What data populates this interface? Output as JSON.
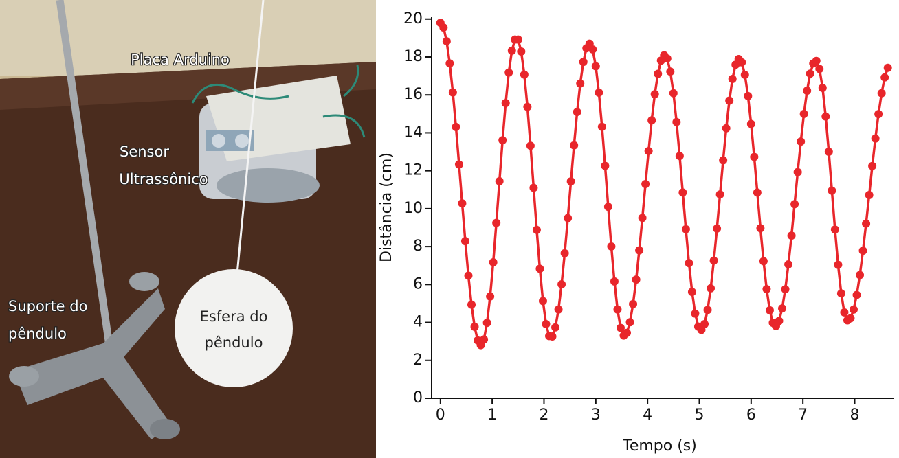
{
  "photo": {
    "labels": [
      "Placa Arduino",
      "Sensor",
      "Ultrassônico",
      "Suporte do",
      "pêndulo",
      "Esfera do",
      "pêndulo"
    ]
  },
  "chart_data": {
    "type": "line",
    "xlabel": "Tempo (s)",
    "ylabel": "Distância (cm)",
    "color": "#e8262b",
    "markers": true,
    "xlim": [
      -0.17,
      8.75
    ],
    "ylim": [
      0,
      20.1
    ],
    "xticks": [
      0,
      1,
      2,
      3,
      4,
      5,
      6,
      7,
      8
    ],
    "yticks": [
      0,
      2,
      4,
      6,
      8,
      10,
      12,
      14,
      16,
      18,
      20
    ],
    "x": [
      0,
      0.06,
      0.12,
      0.18,
      0.24,
      0.3,
      0.36,
      0.42,
      0.48,
      0.54,
      0.6,
      0.66,
      0.72,
      0.78,
      0.84,
      0.9,
      0.96,
      1.02,
      1.08,
      1.14,
      1.2,
      1.26,
      1.32,
      1.38,
      1.44,
      1.5,
      1.56,
      1.62,
      1.68,
      1.74,
      1.8,
      1.86,
      1.92,
      1.98,
      2.04,
      2.1,
      2.16,
      2.22,
      2.28,
      2.34,
      2.4,
      2.46,
      2.52,
      2.58,
      2.64,
      2.7,
      2.76,
      2.82,
      2.88,
      2.94,
      3,
      3.06,
      3.12,
      3.18,
      3.24,
      3.3,
      3.36,
      3.42,
      3.48,
      3.54,
      3.6,
      3.66,
      3.72,
      3.78,
      3.84,
      3.9,
      3.96,
      4.02,
      4.08,
      4.14,
      4.2,
      4.26,
      4.32,
      4.38,
      4.44,
      4.5,
      4.56,
      4.62,
      4.68,
      4.74,
      4.8,
      4.86,
      4.92,
      4.98,
      5.04,
      5.1,
      5.16,
      5.22,
      5.28,
      5.34,
      5.4,
      5.46,
      5.52,
      5.58,
      5.64,
      5.7,
      5.76,
      5.82,
      5.88,
      5.94,
      6,
      6.06,
      6.12,
      6.18,
      6.24,
      6.3,
      6.36,
      6.42,
      6.48,
      6.54,
      6.6,
      6.66,
      6.72,
      6.78,
      6.84,
      6.9,
      6.96,
      7.02,
      7.08,
      7.14,
      7.2,
      7.26,
      7.32,
      7.38,
      7.44,
      7.5,
      7.56,
      7.62,
      7.68,
      7.74,
      7.8,
      7.86,
      7.92,
      7.98,
      8.04,
      8.1,
      8.16,
      8.22,
      8.28,
      8.34,
      8.4,
      8.46,
      8.52,
      8.58,
      8.64
    ],
    "values": [
      19.8,
      19.55,
      18.83,
      17.66,
      16.13,
      14.31,
      12.33,
      10.28,
      8.29,
      6.47,
      4.94,
      3.77,
      3.05,
      2.8,
      3.1,
      3.98,
      5.37,
      7.17,
      9.25,
      11.45,
      13.61,
      15.57,
      17.18,
      18.33,
      18.92,
      18.92,
      18.29,
      17.07,
      15.37,
      13.32,
      11.1,
      8.88,
      6.83,
      5.13,
      3.91,
      3.28,
      3.26,
      3.74,
      4.68,
      6.01,
      7.65,
      9.5,
      11.44,
      13.34,
      15.1,
      16.6,
      17.74,
      18.46,
      18.7,
      18.4,
      17.51,
      16.12,
      14.32,
      12.26,
      10.1,
      8.01,
      6.16,
      4.68,
      3.71,
      3.31,
      3.45,
      4.01,
      4.97,
      6.26,
      7.8,
      9.51,
      11.3,
      13.04,
      14.66,
      16.04,
      17.11,
      17.81,
      18.09,
      17.92,
      17.23,
      16.09,
      14.57,
      12.78,
      10.85,
      8.92,
      7.13,
      5.61,
      4.47,
      3.78,
      3.61,
      3.91,
      4.66,
      5.8,
      7.26,
      8.95,
      10.75,
      12.55,
      14.24,
      15.7,
      16.84,
      17.59,
      17.89,
      17.72,
      17.06,
      15.94,
      14.47,
      12.73,
      10.85,
      8.97,
      7.23,
      5.76,
      4.64,
      3.98,
      3.81,
      4.08,
      4.74,
      5.75,
      7.06,
      8.58,
      10.24,
      11.93,
      13.54,
      15.0,
      16.22,
      17.12,
      17.66,
      17.79,
      17.37,
      16.37,
      14.86,
      13.0,
      10.95,
      8.9,
      7.04,
      5.53,
      4.53,
      4.11,
      4.22,
      4.68,
      5.45,
      6.5,
      7.78,
      9.21,
      10.72,
      12.25,
      13.7,
      14.99,
      16.09,
      16.92,
      17.43
    ]
  }
}
